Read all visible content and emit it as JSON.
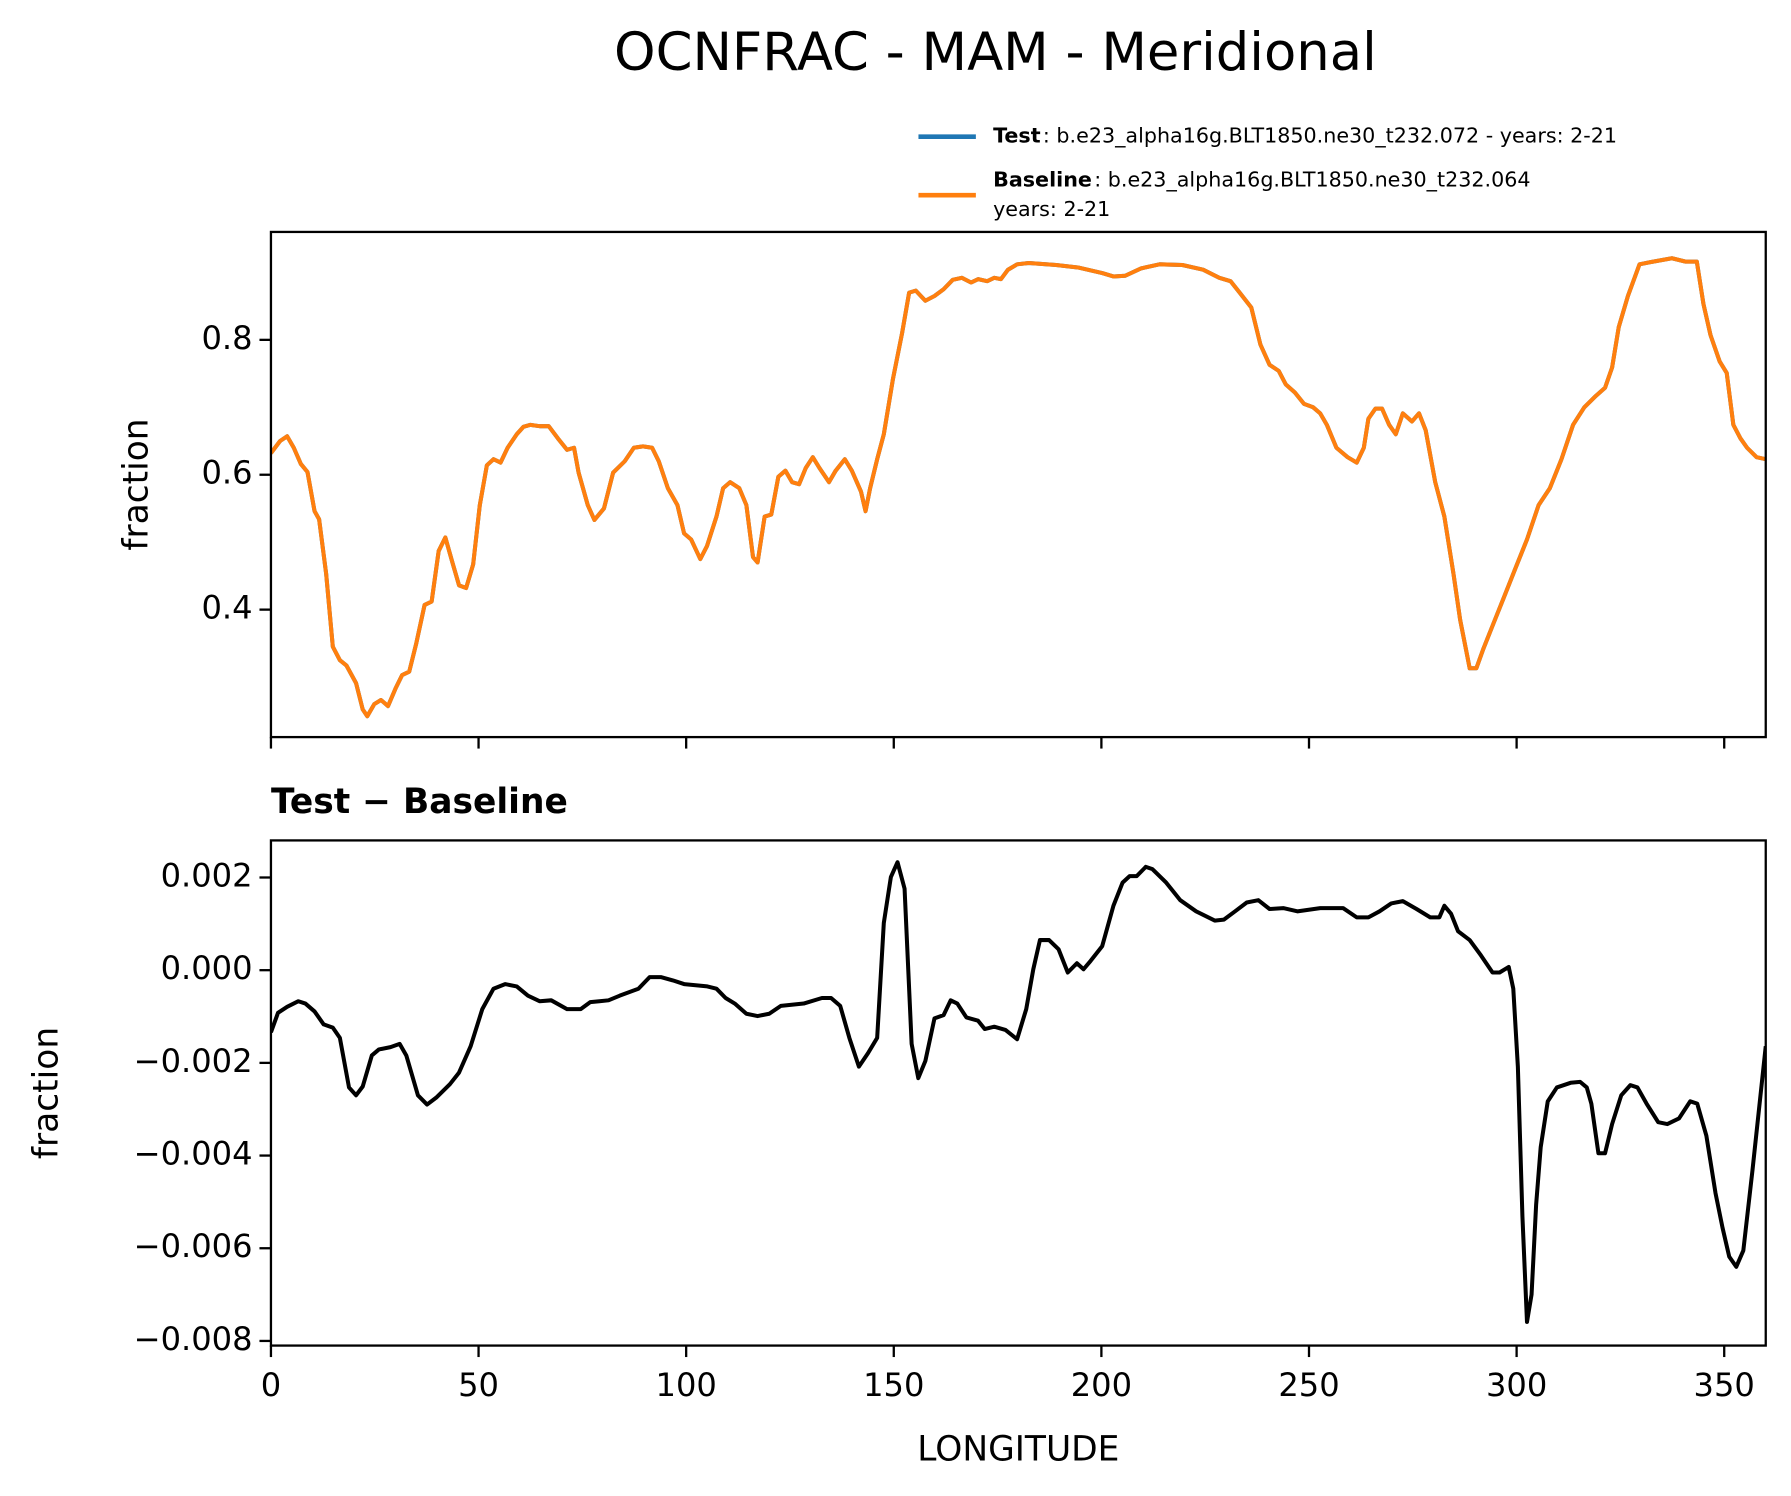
{
  "title": "OCNFRAC - MAM - Meridional",
  "chart_data": [
    {
      "type": "line",
      "ylabel": "fraction",
      "xlim": [
        0,
        360
      ],
      "xticks": [
        0,
        50,
        100,
        150,
        200,
        250,
        300,
        350
      ],
      "show_xtick_labels": false,
      "ylim": [
        0.211,
        0.96
      ],
      "yticks": [
        0.4,
        0.6,
        0.8
      ],
      "legend": "upper right",
      "x": [
        0,
        2.2,
        3.9,
        5.5,
        7.2,
        8.8,
        10.5,
        11.6,
        13.3,
        14.9,
        16.6,
        18.2,
        20.5,
        22.1,
        23.2,
        24.9,
        26.5,
        28.2,
        30,
        31.6,
        33.3,
        35,
        37,
        38.7,
        40.4,
        42,
        43.7,
        45.3,
        47,
        48.7,
        50.3,
        52,
        53.6,
        55.3,
        57,
        59.2,
        60.8,
        62.5,
        64.7,
        66.9,
        69.1,
        71.3,
        73,
        74.1,
        76.3,
        77.9,
        80.2,
        82.4,
        85.2,
        87.4,
        89.6,
        91.8,
        93.4,
        95.6,
        97.9,
        99.5,
        101.2,
        103.4,
        105,
        107.3,
        108.9,
        110.6,
        112.8,
        114.5,
        116.1,
        117.2,
        118.9,
        120.5,
        122.2,
        123.9,
        125.5,
        127.2,
        128.8,
        130.5,
        132.1,
        134.4,
        136,
        138.2,
        139.9,
        142.1,
        143.2,
        144.3,
        146,
        147.6,
        149.8,
        152,
        153.7,
        155.3,
        157.6,
        159.8,
        162,
        164.2,
        166.4,
        168.6,
        170.3,
        172.5,
        174.2,
        175.8,
        177.5,
        179.7,
        182.5,
        189.1,
        194.6,
        200.2,
        202.9,
        205.7,
        209.6,
        214,
        219.5,
        224.5,
        228.4,
        231.1,
        233.3,
        236.1,
        238.3,
        240.5,
        242.7,
        244.4,
        246.6,
        248.8,
        251,
        252.7,
        254.3,
        256.6,
        259.3,
        261.5,
        263.2,
        264.3,
        266,
        267.6,
        269.3,
        270.9,
        272.6,
        274.8,
        276.5,
        278.1,
        280.4,
        282.6,
        284.8,
        286.4,
        288.7,
        290.3,
        292,
        294.2,
        297,
        299.7,
        302.5,
        305.3,
        308,
        310.8,
        313.6,
        316.3,
        319.1,
        321.3,
        323,
        324.6,
        326.8,
        329.6,
        332.9,
        337.4,
        340.7,
        343.4,
        345,
        346.7,
        348.9,
        350.6,
        352.2,
        353.9,
        355.5,
        357.8,
        360
      ],
      "series": [
        {
          "name": "Test",
          "label": [
            ": b.e23_alpha16g.BLT1850.ne30_t232.072 - years: 2-21"
          ],
          "color": "#1f77b4",
          "values": [
            0.632,
            0.65,
            0.657,
            0.64,
            0.616,
            0.604,
            0.546,
            0.534,
            0.453,
            0.345,
            0.325,
            0.317,
            0.291,
            0.252,
            0.242,
            0.26,
            0.266,
            0.257,
            0.283,
            0.303,
            0.308,
            0.35,
            0.407,
            0.412,
            0.487,
            0.507,
            0.47,
            0.436,
            0.432,
            0.467,
            0.555,
            0.614,
            0.623,
            0.618,
            0.64,
            0.66,
            0.671,
            0.674,
            0.672,
            0.672,
            0.654,
            0.637,
            0.64,
            0.603,
            0.555,
            0.533,
            0.55,
            0.603,
            0.62,
            0.64,
            0.642,
            0.64,
            0.62,
            0.58,
            0.555,
            0.513,
            0.504,
            0.475,
            0.494,
            0.538,
            0.58,
            0.589,
            0.58,
            0.555,
            0.478,
            0.47,
            0.538,
            0.541,
            0.597,
            0.606,
            0.589,
            0.586,
            0.61,
            0.626,
            0.61,
            0.589,
            0.606,
            0.623,
            0.606,
            0.575,
            0.546,
            0.58,
            0.623,
            0.66,
            0.742,
            0.81,
            0.87,
            0.873,
            0.858,
            0.865,
            0.875,
            0.889,
            0.892,
            0.885,
            0.89,
            0.887,
            0.892,
            0.89,
            0.904,
            0.912,
            0.914,
            0.911,
            0.907,
            0.899,
            0.894,
            0.895,
            0.906,
            0.912,
            0.911,
            0.904,
            0.892,
            0.887,
            0.87,
            0.848,
            0.793,
            0.763,
            0.754,
            0.734,
            0.722,
            0.705,
            0.7,
            0.691,
            0.674,
            0.64,
            0.626,
            0.618,
            0.64,
            0.683,
            0.698,
            0.698,
            0.674,
            0.66,
            0.691,
            0.679,
            0.691,
            0.666,
            0.589,
            0.538,
            0.453,
            0.385,
            0.313,
            0.313,
            0.342,
            0.376,
            0.419,
            0.461,
            0.504,
            0.555,
            0.58,
            0.623,
            0.674,
            0.7,
            0.717,
            0.729,
            0.759,
            0.819,
            0.865,
            0.912,
            0.916,
            0.921,
            0.916,
            0.916,
            0.853,
            0.807,
            0.768,
            0.751,
            0.674,
            0.654,
            0.64,
            0.626,
            0.623
          ]
        },
        {
          "name": "Baseline",
          "label": [
            ": b.e23_alpha16g.BLT1850.ne30_t232.064",
            "years: 2-21"
          ],
          "color": "#ff7f0e",
          "values": [
            0.632,
            0.65,
            0.657,
            0.64,
            0.616,
            0.604,
            0.546,
            0.534,
            0.453,
            0.345,
            0.325,
            0.317,
            0.291,
            0.252,
            0.242,
            0.26,
            0.266,
            0.257,
            0.283,
            0.303,
            0.308,
            0.35,
            0.407,
            0.412,
            0.487,
            0.507,
            0.47,
            0.436,
            0.432,
            0.467,
            0.555,
            0.614,
            0.623,
            0.618,
            0.64,
            0.66,
            0.671,
            0.674,
            0.672,
            0.672,
            0.654,
            0.637,
            0.64,
            0.603,
            0.555,
            0.533,
            0.55,
            0.603,
            0.62,
            0.64,
            0.642,
            0.64,
            0.62,
            0.58,
            0.555,
            0.513,
            0.504,
            0.475,
            0.494,
            0.538,
            0.58,
            0.589,
            0.58,
            0.555,
            0.478,
            0.47,
            0.538,
            0.541,
            0.597,
            0.606,
            0.589,
            0.586,
            0.61,
            0.626,
            0.61,
            0.589,
            0.606,
            0.623,
            0.606,
            0.575,
            0.546,
            0.58,
            0.623,
            0.66,
            0.742,
            0.81,
            0.87,
            0.873,
            0.858,
            0.865,
            0.875,
            0.889,
            0.892,
            0.885,
            0.89,
            0.887,
            0.892,
            0.89,
            0.904,
            0.912,
            0.914,
            0.911,
            0.907,
            0.899,
            0.894,
            0.895,
            0.906,
            0.912,
            0.911,
            0.904,
            0.892,
            0.887,
            0.87,
            0.848,
            0.793,
            0.763,
            0.754,
            0.734,
            0.722,
            0.705,
            0.7,
            0.691,
            0.674,
            0.64,
            0.626,
            0.618,
            0.64,
            0.683,
            0.698,
            0.698,
            0.674,
            0.66,
            0.691,
            0.679,
            0.691,
            0.666,
            0.589,
            0.538,
            0.453,
            0.385,
            0.313,
            0.313,
            0.342,
            0.376,
            0.419,
            0.461,
            0.504,
            0.555,
            0.58,
            0.623,
            0.674,
            0.7,
            0.717,
            0.729,
            0.759,
            0.819,
            0.865,
            0.912,
            0.916,
            0.921,
            0.916,
            0.916,
            0.853,
            0.807,
            0.768,
            0.751,
            0.674,
            0.654,
            0.64,
            0.626,
            0.623
          ]
        }
      ]
    },
    {
      "type": "line",
      "title": "Test − Baseline",
      "xlabel": "LONGITUDE",
      "ylabel": "fraction",
      "color": "#000000",
      "xlim": [
        0,
        360
      ],
      "xticks": [
        0,
        50,
        100,
        150,
        200,
        250,
        300,
        350
      ],
      "show_xtick_labels": true,
      "ylim": [
        -0.0081,
        0.0028
      ],
      "yticks": [
        {
          "value": -0.008,
          "label": "−0.008"
        },
        {
          "value": -0.006,
          "label": "−0.006"
        },
        {
          "value": -0.004,
          "label": "−0.004"
        },
        {
          "value": -0.002,
          "label": "−0.002"
        },
        {
          "value": 0,
          "label": "0.000"
        },
        0.002
      ],
      "x": [
        0,
        1.7,
        3.9,
        6.6,
        8.3,
        10.5,
        12.7,
        14.9,
        16.6,
        18.8,
        20.5,
        22.1,
        24.3,
        26,
        28.8,
        31,
        32.6,
        35.4,
        37.6,
        39.8,
        43.1,
        45.3,
        48.1,
        50.9,
        53.6,
        56.4,
        59.2,
        61.9,
        64.7,
        67.5,
        71.3,
        74.6,
        76.9,
        79.1,
        81.3,
        84,
        88.5,
        91.2,
        94,
        96.8,
        99.5,
        105.1,
        107.3,
        109.5,
        111.7,
        114.5,
        117.2,
        120,
        122.8,
        128.3,
        132.7,
        134.9,
        137.1,
        139.3,
        141.6,
        143.8,
        146,
        147.6,
        149.3,
        150.9,
        152.6,
        154.3,
        155.9,
        157.6,
        159.8,
        162,
        163.7,
        165.3,
        167.5,
        170.3,
        171.9,
        174.2,
        176.9,
        179.7,
        181.9,
        183.6,
        185.2,
        187.4,
        189.7,
        191.9,
        194.1,
        195.7,
        197.4,
        200.2,
        202.9,
        205.1,
        206.8,
        208.5,
        210.7,
        212.3,
        215.6,
        219,
        222.8,
        227.3,
        229.5,
        232.2,
        235,
        237.8,
        240.5,
        243.8,
        247.2,
        252.7,
        258.2,
        261.5,
        264.3,
        267,
        269.8,
        272.6,
        275.9,
        279.2,
        281.4,
        282.6,
        284.2,
        285.9,
        288.7,
        291.4,
        294.2,
        295.9,
        298.1,
        299.2,
        300.3,
        301.4,
        302.5,
        303.6,
        304.7,
        305.8,
        307.5,
        309.7,
        313,
        315.3,
        316.9,
        318,
        319.7,
        321.3,
        323,
        325.2,
        327.4,
        329.1,
        331.3,
        334.1,
        336.3,
        339.1,
        341.8,
        343.5,
        345.7,
        347.9,
        349.6,
        351.2,
        352.9,
        354.6,
        356.8,
        360
      ],
      "values": [
        -0.00134,
        -0.00092,
        -0.00079,
        -0.00067,
        -0.00072,
        -0.00089,
        -0.00117,
        -0.00124,
        -0.00146,
        -0.00253,
        -0.0027,
        -0.00251,
        -0.00184,
        -0.00171,
        -0.00166,
        -0.00159,
        -0.00184,
        -0.0027,
        -0.0029,
        -0.00275,
        -0.00246,
        -0.00221,
        -0.00164,
        -0.00084,
        -0.0004,
        -0.0003,
        -0.00035,
        -0.00055,
        -0.00067,
        -0.00065,
        -0.00084,
        -0.00084,
        -0.00069,
        -0.00067,
        -0.00065,
        -0.00055,
        -0.0004,
        -0.00015,
        -0.00015,
        -0.00022,
        -0.0003,
        -0.00035,
        -0.0004,
        -0.0006,
        -0.00072,
        -0.00094,
        -0.00099,
        -0.00094,
        -0.00077,
        -0.00072,
        -0.0006,
        -0.0006,
        -0.00077,
        -0.00146,
        -0.00208,
        -0.00179,
        -0.00146,
        0.00102,
        0.00201,
        0.00233,
        0.00176,
        -0.00159,
        -0.00233,
        -0.00196,
        -0.00104,
        -0.00097,
        -0.00065,
        -0.00072,
        -0.00102,
        -0.00109,
        -0.00127,
        -0.00122,
        -0.00129,
        -0.00149,
        -0.00084,
        2e-05,
        0.00065,
        0.00065,
        0.00045,
        -5e-05,
        0.00015,
        2e-05,
        0.0002,
        0.00052,
        0.00139,
        0.00189,
        0.00203,
        0.00203,
        0.00223,
        0.00218,
        0.00189,
        0.00151,
        0.00127,
        0.00107,
        0.00109,
        0.00127,
        0.00146,
        0.00151,
        0.00132,
        0.00134,
        0.00127,
        0.00134,
        0.00134,
        0.00114,
        0.00114,
        0.00127,
        0.00144,
        0.00149,
        0.00132,
        0.00114,
        0.00114,
        0.00139,
        0.00122,
        0.00084,
        0.00065,
        0.00032,
        -5e-05,
        -5e-05,
        7e-05,
        -0.0004,
        -0.00208,
        -0.00531,
        -0.00759,
        -0.007,
        -0.00506,
        -0.00382,
        -0.00283,
        -0.00253,
        -0.00243,
        -0.00241,
        -0.00253,
        -0.00288,
        -0.00395,
        -0.00395,
        -0.00332,
        -0.0027,
        -0.00248,
        -0.00253,
        -0.00288,
        -0.00328,
        -0.00332,
        -0.0032,
        -0.00283,
        -0.00288,
        -0.00357,
        -0.00481,
        -0.00556,
        -0.00618,
        -0.0064,
        -0.00605,
        -0.00432,
        -0.00164
      ]
    }
  ]
}
